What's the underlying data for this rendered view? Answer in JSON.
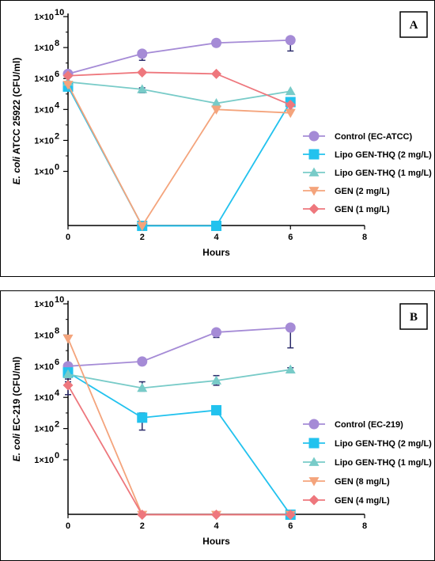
{
  "chart_data": [
    {
      "type": "line",
      "panel_label": "A",
      "ylabel_italic": "E. coli",
      "ylabel_rest": " ATCC 25922 (CFU/ml)",
      "xlabel": "Hours",
      "xlim": [
        0,
        8
      ],
      "x_ticks": [
        "0",
        "2",
        "4",
        "6",
        "8"
      ],
      "y_scale": "log",
      "ylim_log10": [
        -3.5,
        10
      ],
      "y_ticks": [
        "1×10^10",
        "1×10^8",
        "1×10^6",
        "1×10^4",
        "1×10^2",
        "1×10^0"
      ],
      "x": [
        0,
        2,
        4,
        6
      ],
      "legend_position": "right",
      "series": [
        {
          "name": "Control (EC-ATCC)",
          "color": "#a58bd6",
          "marker": "circle",
          "values": [
            2000000.0,
            40000000.0,
            200000000.0,
            300000000.0
          ],
          "error": [
            null,
            [
              15000000.0,
              50000000.0
            ],
            null,
            [
              60000000.0,
              400000000.0
            ]
          ]
        },
        {
          "name": "Lipo GEN-THQ (2 mg/L)",
          "color": "#22c2ee",
          "marker": "square",
          "values": [
            300000.0,
            0.0003,
            0.0003,
            30000.0
          ],
          "error": [
            null,
            null,
            null,
            [
              10000.0,
              40000.0
            ]
          ]
        },
        {
          "name": "Lipo GEN-THQ (1 mg/L)",
          "color": "#78cbc8",
          "marker": "triangle-up",
          "values": [
            600000.0,
            200000.0,
            25000.0,
            150000.0
          ],
          "error": [
            null,
            [
              120000.0,
              250000.0
            ],
            null,
            null
          ]
        },
        {
          "name": "GEN (2 mg/L)",
          "color": "#f4a47c",
          "marker": "triangle-down",
          "values": [
            400000.0,
            0.0003,
            10000.0,
            6000.0
          ],
          "error": [
            null,
            null,
            null,
            null
          ]
        },
        {
          "name": "GEN (1 mg/L)",
          "color": "#ee777d",
          "marker": "diamond",
          "values": [
            1500000.0,
            2500000.0,
            2000000.0,
            20000.0
          ],
          "error": [
            null,
            null,
            null,
            null
          ]
        }
      ]
    },
    {
      "type": "line",
      "panel_label": "B",
      "ylabel_italic": "E. coli",
      "ylabel_rest": " EC-219 (CFU/ml)",
      "xlabel": "Hours",
      "xlim": [
        0,
        8
      ],
      "x_ticks": [
        "0",
        "2",
        "4",
        "6",
        "8"
      ],
      "y_scale": "log",
      "ylim_log10": [
        -3.5,
        10
      ],
      "y_ticks": [
        "1×10^10",
        "1×10^8",
        "1×10^6",
        "1×10^4",
        "1×10^2",
        "1×10^0"
      ],
      "x": [
        0,
        2,
        4,
        6
      ],
      "legend_position": "right",
      "series": [
        {
          "name": "Control (EC-219)",
          "color": "#a58bd6",
          "marker": "circle",
          "values": [
            1000000.0,
            2000000.0,
            150000000.0,
            300000000.0
          ],
          "error": [
            null,
            null,
            [
              70000000.0,
              200000000.0
            ],
            [
              15000000.0,
              400000000.0
            ]
          ]
        },
        {
          "name": "Lipo GEN-THQ (2 mg/L)",
          "color": "#22c2ee",
          "marker": "square",
          "values": [
            400000.0,
            500.0,
            1500.0,
            0.0003
          ],
          "error": [
            [
              150000.0,
              700000.0
            ],
            [
              80,
              1000.0
            ],
            [
              800.0,
              2000.0
            ],
            null
          ]
        },
        {
          "name": "Lipo GEN-THQ (1 mg/L)",
          "color": "#78cbc8",
          "marker": "triangle-up",
          "values": [
            300000.0,
            40000.0,
            120000.0,
            600000.0
          ],
          "error": [
            null,
            [
              25000.0,
              100000.0
            ],
            [
              60000.0,
              250000.0
            ],
            [
              400000.0,
              800000.0
            ]
          ]
        },
        {
          "name": "GEN (8 mg/L)",
          "color": "#f4a47c",
          "marker": "triangle-down",
          "values": [
            60000000.0,
            0.0003,
            0.0003,
            0.0003
          ],
          "error": [
            null,
            null,
            null,
            null
          ]
        },
        {
          "name": "GEN (4 mg/L)",
          "color": "#ee777d",
          "marker": "diamond",
          "values": [
            60000.0,
            0.0003,
            0.0003,
            0.0003
          ],
          "error": [
            [
              15000.0,
              100000.0
            ],
            null,
            null,
            null
          ]
        }
      ]
    }
  ]
}
